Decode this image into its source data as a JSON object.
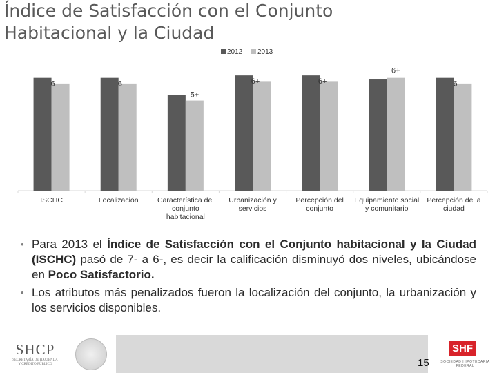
{
  "title": {
    "line1": "Índice de Satisfacción con el Conjunto",
    "line2": "Habitacional y la Ciudad"
  },
  "chart_data": {
    "type": "bar",
    "categories": [
      [
        "ISCHC"
      ],
      [
        "Localización"
      ],
      [
        "Característica del",
        "conjunto",
        "habitacional"
      ],
      [
        "Urbanización y",
        "servicios"
      ],
      [
        "Percepción del",
        "conjunto"
      ],
      [
        "Equipamiento social",
        "y comunitario"
      ],
      [
        "Percepción de la",
        "ciudad"
      ]
    ],
    "series": [
      {
        "name": "2012",
        "color": "#595959",
        "values": [
          6.95,
          6.95,
          5.9,
          7.1,
          7.1,
          6.85,
          6.95
        ]
      },
      {
        "name": "2013",
        "color": "#bfbfbf",
        "values": [
          6.6,
          6.6,
          5.55,
          6.75,
          6.75,
          6.95,
          6.6
        ]
      }
    ],
    "data_labels": [
      "6-",
      "6-",
      "5+",
      "6+",
      "6+",
      "6+",
      "6-"
    ],
    "ylim": [
      0,
      8
    ],
    "legend": "top-center",
    "grid": false
  },
  "bullets": [
    {
      "p1": "Para 2013 el ",
      "b1": "Índice de Satisfacción con el Conjunto habitacional y la Ciudad (ISCHC)",
      "p2": " pasó de 7- a 6-, es decir la calificación disminuyó dos niveles, ubicándose en ",
      "b2": "Poco Satisfactorio.",
      "p3": ""
    },
    {
      "p1": "Los atributos más penalizados fueron la localización del conjunto, la urbanización y los servicios disponibles.",
      "b1": "",
      "p2": "",
      "b2": "",
      "p3": ""
    }
  ],
  "footer": {
    "shcp": "SHCP",
    "shcp_sub1": "SECRETARÍA DE HACIENDA",
    "shcp_sub2": "Y CRÉDITO PÚBLICO",
    "page_number": "15",
    "shf": "SHF",
    "shf_sub": "SOCIEDAD HIPOTECARIA FEDERAL"
  }
}
